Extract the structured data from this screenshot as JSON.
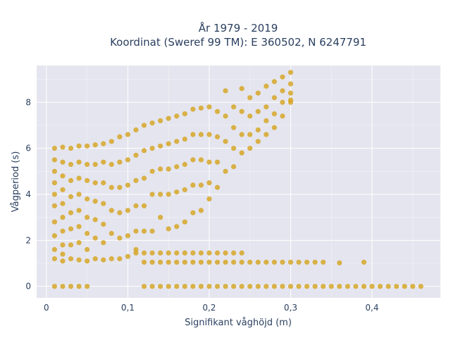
{
  "chart_data": {
    "type": "scatter",
    "title": "År 1979 - 2019",
    "subtitle": "Koordinat (Sweref 99 TM): E 360502, N 6247791",
    "xlabel": "Signifikant våghöjd (m)",
    "ylabel": "Vågperiod (s)",
    "xlim": [
      -0.012,
      0.484
    ],
    "ylim": [
      -0.5,
      9.6
    ],
    "x_ticks": [
      0,
      0.1,
      0.2,
      0.3,
      0.4
    ],
    "x_tick_labels": [
      "0",
      "0,1",
      "0,2",
      "0,3",
      "0,4"
    ],
    "y_ticks": [
      0,
      2,
      4,
      6,
      8
    ],
    "y_tick_labels": [
      "0",
      "2",
      "4",
      "6",
      "8"
    ],
    "grid": true,
    "background_color": "#e5e5ef",
    "marker_color": "#d4a21a",
    "series": [
      {
        "x": [
          0.01,
          0.01,
          0.01,
          0.01,
          0.01,
          0.01,
          0.01,
          0.01,
          0.01,
          0.01,
          0.02,
          0.02,
          0.02,
          0.02,
          0.02,
          0.02,
          0.02,
          0.02,
          0.02,
          0.02,
          0.03,
          0.03,
          0.03,
          0.03,
          0.03,
          0.03,
          0.03,
          0.03,
          0.04,
          0.04,
          0.04,
          0.04,
          0.04,
          0.04,
          0.04,
          0.04,
          0.05,
          0.05,
          0.05,
          0.05,
          0.05,
          0.05,
          0.05,
          0.05,
          0.06,
          0.06,
          0.06,
          0.06,
          0.06,
          0.06,
          0.06,
          0.07,
          0.07,
          0.07,
          0.07,
          0.07,
          0.07,
          0.07,
          0.08,
          0.08,
          0.08,
          0.08,
          0.08,
          0.08,
          0.09,
          0.09,
          0.09,
          0.09,
          0.09,
          0.09,
          0.1,
          0.1,
          0.1,
          0.1,
          0.1,
          0.1,
          0.11,
          0.11,
          0.11,
          0.11,
          0.11,
          0.11,
          0.12,
          0.12,
          0.12,
          0.12,
          0.12,
          0.13,
          0.13,
          0.13,
          0.13,
          0.13,
          0.14,
          0.14,
          0.14,
          0.14,
          0.14,
          0.15,
          0.15,
          0.15,
          0.15,
          0.15,
          0.16,
          0.16,
          0.16,
          0.16,
          0.16,
          0.17,
          0.17,
          0.17,
          0.17,
          0.17,
          0.18,
          0.18,
          0.18,
          0.18,
          0.18,
          0.19,
          0.19,
          0.19,
          0.19,
          0.19,
          0.2,
          0.2,
          0.2,
          0.2,
          0.2,
          0.21,
          0.21,
          0.21,
          0.21,
          0.22,
          0.22,
          0.22,
          0.22,
          0.23,
          0.23,
          0.23,
          0.23,
          0.24,
          0.24,
          0.24,
          0.24,
          0.25,
          0.25,
          0.25,
          0.25,
          0.26,
          0.26,
          0.26,
          0.26,
          0.27,
          0.27,
          0.27,
          0.27,
          0.28,
          0.28,
          0.28,
          0.28,
          0.29,
          0.29,
          0.29,
          0.29,
          0.3,
          0.3,
          0.3,
          0.3,
          0.3
        ],
        "y": [
          6.0,
          5.5,
          5.0,
          4.5,
          4.0,
          3.5,
          2.8,
          2.2,
          1.6,
          1.2,
          6.05,
          5.4,
          4.8,
          4.2,
          3.6,
          3.0,
          2.4,
          1.8,
          1.4,
          1.1,
          6.0,
          5.3,
          4.6,
          3.9,
          3.2,
          2.5,
          1.8,
          1.2,
          6.1,
          5.4,
          4.7,
          4.0,
          3.3,
          2.6,
          1.9,
          1.15,
          6.1,
          5.3,
          4.6,
          3.8,
          3.0,
          2.3,
          1.6,
          1.1,
          6.15,
          5.3,
          4.5,
          3.7,
          2.9,
          2.1,
          1.2,
          6.2,
          5.4,
          4.5,
          3.6,
          2.7,
          1.9,
          1.15,
          6.3,
          5.3,
          4.3,
          3.3,
          2.3,
          1.2,
          6.5,
          5.4,
          4.3,
          3.2,
          2.1,
          1.2,
          6.6,
          5.5,
          4.4,
          3.3,
          2.2,
          1.3,
          6.8,
          5.7,
          4.6,
          3.5,
          2.4,
          1.6,
          7.0,
          5.9,
          4.7,
          3.5,
          2.4,
          7.1,
          6.0,
          5.0,
          4.0,
          2.4,
          7.2,
          6.1,
          5.1,
          4.0,
          3.0,
          7.3,
          6.2,
          5.1,
          4.0,
          2.5,
          7.4,
          6.3,
          5.2,
          4.1,
          2.6,
          7.5,
          6.4,
          5.3,
          4.2,
          2.8,
          7.7,
          6.6,
          5.5,
          4.4,
          3.2,
          7.75,
          6.6,
          5.5,
          4.4,
          3.3,
          7.8,
          6.6,
          5.4,
          4.5,
          3.8,
          7.6,
          6.5,
          5.4,
          4.3,
          8.5,
          7.4,
          6.3,
          5.0,
          7.8,
          6.9,
          6.0,
          5.2,
          8.6,
          7.6,
          6.6,
          5.8,
          8.2,
          7.4,
          6.6,
          6.0,
          8.4,
          7.6,
          6.8,
          6.3,
          8.7,
          7.8,
          7.2,
          6.6,
          8.9,
          8.2,
          7.5,
          6.9,
          9.1,
          8.5,
          8.0,
          7.4,
          9.3,
          8.8,
          8.4,
          8.1,
          8.0
        ]
      },
      {
        "x": [
          0.11,
          0.12,
          0.13,
          0.14,
          0.15,
          0.16,
          0.17,
          0.18,
          0.19,
          0.2,
          0.21,
          0.22,
          0.23,
          0.24,
          0.12,
          0.13,
          0.14,
          0.15,
          0.16,
          0.17,
          0.18,
          0.19,
          0.2,
          0.21,
          0.22,
          0.23,
          0.24,
          0.25,
          0.26,
          0.27,
          0.28,
          0.29,
          0.3,
          0.31,
          0.32,
          0.33,
          0.34,
          0.36,
          0.39
        ],
        "y": [
          1.45,
          1.45,
          1.45,
          1.45,
          1.45,
          1.45,
          1.45,
          1.45,
          1.45,
          1.45,
          1.45,
          1.45,
          1.45,
          1.45,
          1.05,
          1.05,
          1.05,
          1.05,
          1.05,
          1.05,
          1.05,
          1.05,
          1.05,
          1.05,
          1.05,
          1.05,
          1.05,
          1.05,
          1.05,
          1.05,
          1.05,
          1.05,
          1.05,
          1.05,
          1.05,
          1.05,
          1.05,
          1.02,
          1.05
        ]
      },
      {
        "x": [
          0.01,
          0.02,
          0.03,
          0.04,
          0.05,
          0.12,
          0.13,
          0.14,
          0.15,
          0.16,
          0.17,
          0.18,
          0.19,
          0.2,
          0.21,
          0.22,
          0.23,
          0.24,
          0.25,
          0.26,
          0.27,
          0.28,
          0.29,
          0.3,
          0.31,
          0.32,
          0.33,
          0.34,
          0.35,
          0.36,
          0.37,
          0.38,
          0.39,
          0.4,
          0.41,
          0.42,
          0.43,
          0.44,
          0.45,
          0.46
        ],
        "y": [
          0,
          0,
          0,
          0,
          0,
          0,
          0,
          0,
          0,
          0,
          0,
          0,
          0,
          0,
          0,
          0,
          0,
          0,
          0,
          0,
          0,
          0,
          0,
          0,
          0,
          0,
          0,
          0,
          0,
          0,
          0,
          0,
          0,
          0,
          0,
          0,
          0,
          0,
          0,
          0
        ]
      }
    ]
  }
}
